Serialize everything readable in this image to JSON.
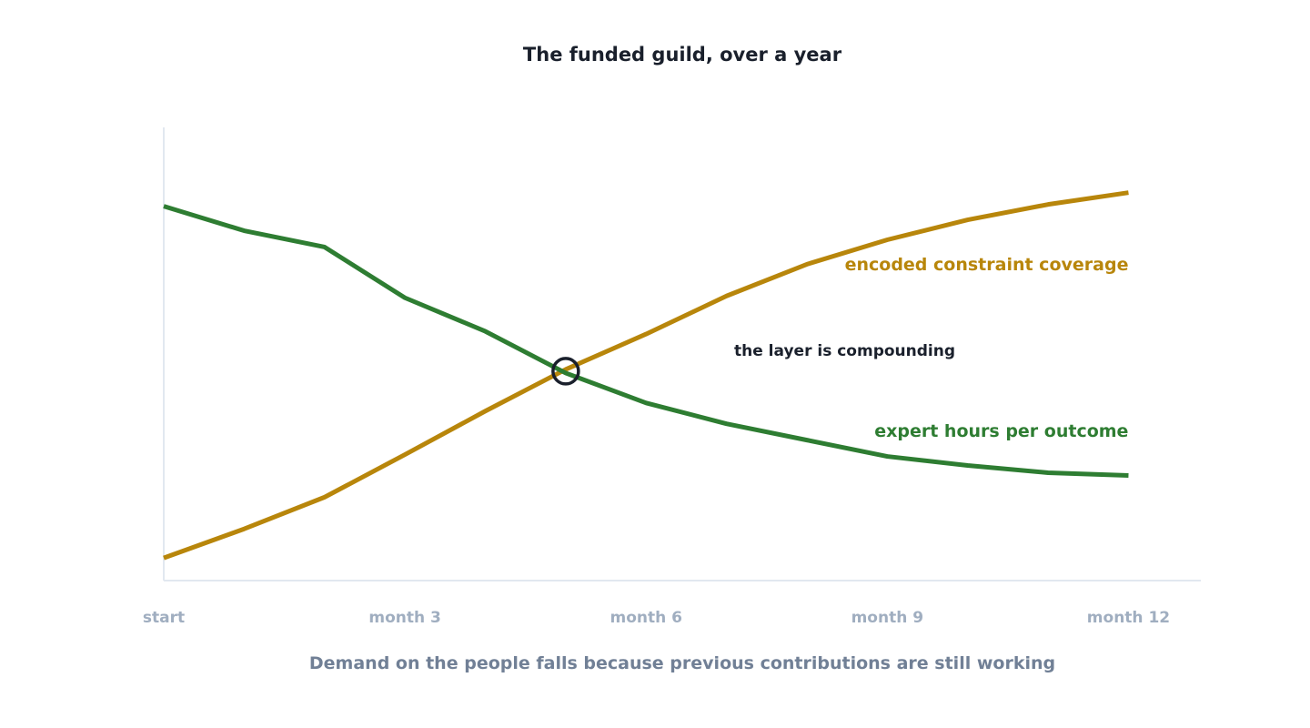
{
  "chart_data": {
    "type": "line",
    "title": "The funded guild, over a year",
    "xlabel": "Demand on the people falls because previous contributions are still working",
    "ylabel": "",
    "x": [
      0,
      1,
      2,
      3,
      4,
      5,
      6,
      7,
      8,
      9,
      10,
      11,
      12
    ],
    "x_ticks": [
      {
        "x": 0,
        "label": "start"
      },
      {
        "x": 3,
        "label": "month 3"
      },
      {
        "x": 6,
        "label": "month 6"
      },
      {
        "x": 9,
        "label": "month 9"
      },
      {
        "x": 12,
        "label": "month 12"
      }
    ],
    "xlim": [
      0,
      12.9
    ],
    "ylim": [
      0,
      100
    ],
    "grid": false,
    "series": [
      {
        "name": "encoded constraint coverage",
        "color": "#b8860b",
        "values": [
          5,
          11.4,
          18.4,
          27.8,
          37.4,
          46.6,
          54.4,
          62.8,
          69.8,
          75.2,
          79.6,
          83,
          85.6
        ]
      },
      {
        "name": "expert hours per outcome",
        "color": "#2e7d32",
        "values": [
          82.6,
          77.2,
          73.6,
          62.4,
          55,
          45.8,
          39.2,
          34.6,
          31,
          27.4,
          25.4,
          23.8,
          23.2
        ]
      }
    ],
    "annotations": [
      {
        "text": "the layer is compounding",
        "x": 5,
        "y": 46.2,
        "marker": "circle",
        "color": "#1a202c"
      }
    ],
    "legend": "inline-right",
    "axis_color": "#e2e8f0",
    "tick_color": "#a0aec0",
    "title_color": "#1a202c",
    "caption_color": "#718096"
  }
}
